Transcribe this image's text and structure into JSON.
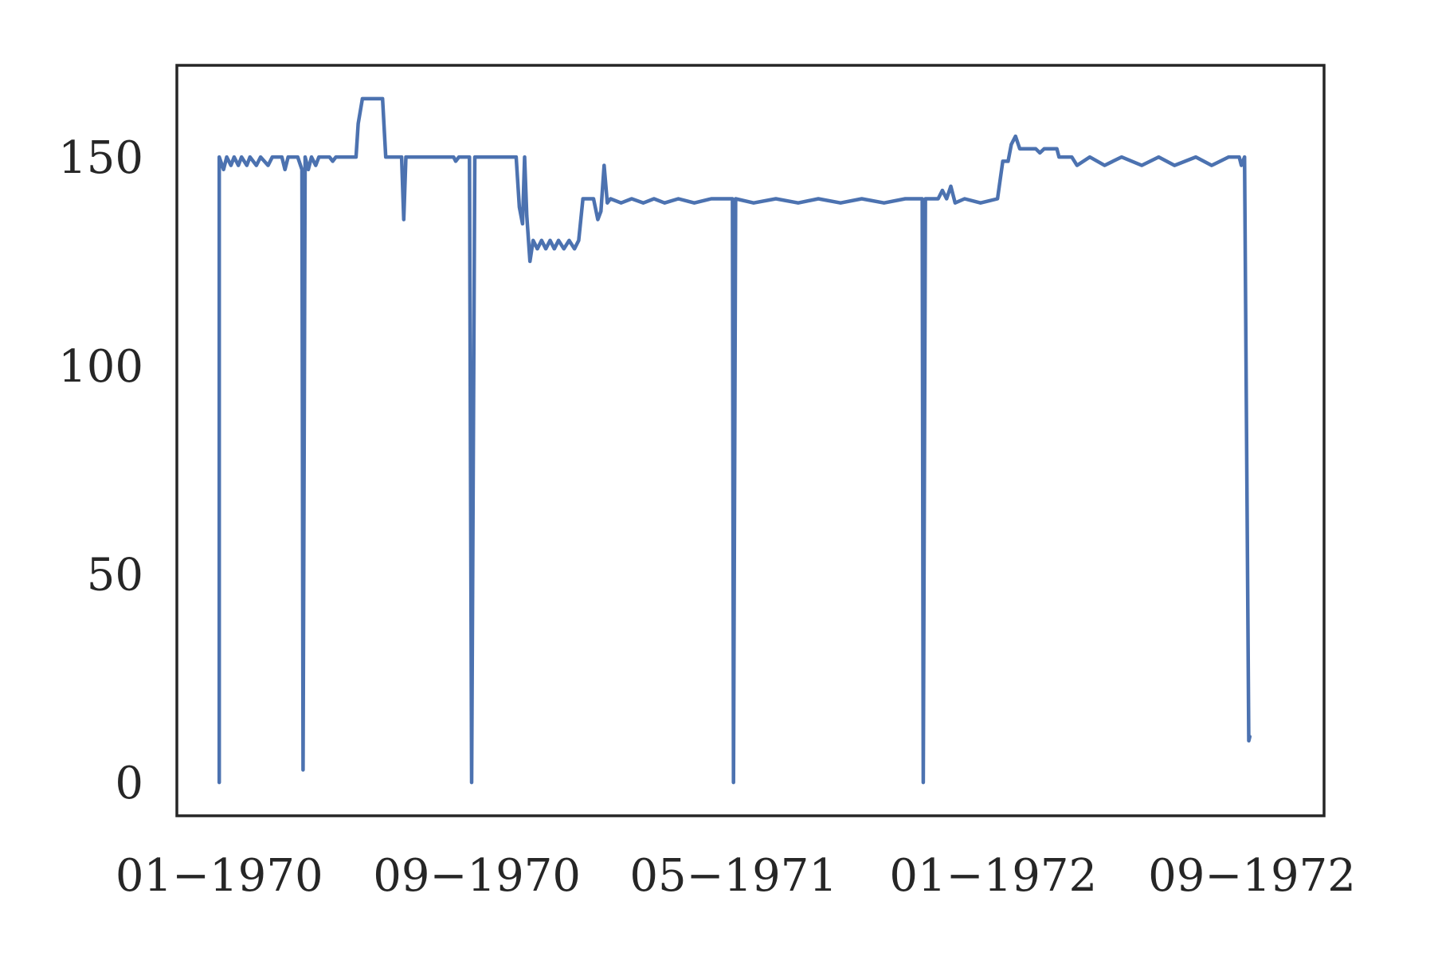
{
  "chart_data": {
    "type": "line",
    "title": "",
    "xlabel": "",
    "ylabel": "",
    "x_axis": {
      "type": "date",
      "range": [
        "1969-11-22",
        "1972-11-08"
      ],
      "ticks": [
        {
          "date": "1970-01-01",
          "label": "01−1970"
        },
        {
          "date": "1970-09-01",
          "label": "09−1970"
        },
        {
          "date": "1971-05-01",
          "label": "05−1971"
        },
        {
          "date": "1972-01-01",
          "label": "01−1972"
        },
        {
          "date": "1972-09-01",
          "label": "09−1972"
        }
      ]
    },
    "y_axis": {
      "range": [
        -8,
        172
      ],
      "ticks": [
        {
          "value": 0,
          "label": "0"
        },
        {
          "value": 50,
          "label": "50"
        },
        {
          "value": 100,
          "label": "100"
        },
        {
          "value": 150,
          "label": "150"
        }
      ]
    },
    "grid": false,
    "legend": "none",
    "series": [
      {
        "color": "#4c72b0",
        "points": [
          [
            "1970-01-01",
            0
          ],
          [
            "1970-01-01",
            150
          ],
          [
            "1970-01-05",
            147
          ],
          [
            "1970-01-08",
            150
          ],
          [
            "1970-01-12",
            148
          ],
          [
            "1970-01-15",
            150
          ],
          [
            "1970-01-19",
            148
          ],
          [
            "1970-01-22",
            150
          ],
          [
            "1970-01-27",
            148
          ],
          [
            "1970-01-30",
            150
          ],
          [
            "1970-02-05",
            148
          ],
          [
            "1970-02-09",
            150
          ],
          [
            "1970-02-16",
            148
          ],
          [
            "1970-02-20",
            150
          ],
          [
            "1970-03-01",
            150
          ],
          [
            "1970-03-04",
            147
          ],
          [
            "1970-03-07",
            150
          ],
          [
            "1970-03-16",
            150
          ],
          [
            "1970-03-20",
            147
          ],
          [
            "1970-03-21",
            3
          ],
          [
            "1970-03-23",
            150
          ],
          [
            "1970-03-26",
            147
          ],
          [
            "1970-03-29",
            150
          ],
          [
            "1970-04-02",
            148
          ],
          [
            "1970-04-05",
            150
          ],
          [
            "1970-04-15",
            150
          ],
          [
            "1970-04-18",
            149
          ],
          [
            "1970-04-21",
            150
          ],
          [
            "1970-05-10",
            150
          ],
          [
            "1970-05-12",
            158
          ],
          [
            "1970-05-16",
            164
          ],
          [
            "1970-06-04",
            164
          ],
          [
            "1970-06-07",
            150
          ],
          [
            "1970-06-22",
            150
          ],
          [
            "1970-06-24",
            135
          ],
          [
            "1970-06-26",
            150
          ],
          [
            "1970-08-10",
            150
          ],
          [
            "1970-08-12",
            149
          ],
          [
            "1970-08-15",
            150
          ],
          [
            "1970-08-25",
            150
          ],
          [
            "1970-08-27",
            0
          ],
          [
            "1970-08-30",
            150
          ],
          [
            "1970-10-08",
            150
          ],
          [
            "1970-10-11",
            138
          ],
          [
            "1970-10-14",
            134
          ],
          [
            "1970-10-16",
            150
          ],
          [
            "1970-10-18",
            136
          ],
          [
            "1970-10-21",
            125
          ],
          [
            "1970-10-24",
            130
          ],
          [
            "1970-10-28",
            128
          ],
          [
            "1970-11-01",
            130
          ],
          [
            "1970-11-05",
            128
          ],
          [
            "1970-11-09",
            130
          ],
          [
            "1970-11-13",
            128
          ],
          [
            "1970-11-17",
            130
          ],
          [
            "1970-11-22",
            128
          ],
          [
            "1970-11-27",
            130
          ],
          [
            "1970-12-02",
            128
          ],
          [
            "1970-12-06",
            130
          ],
          [
            "1970-12-10",
            140
          ],
          [
            "1970-12-20",
            140
          ],
          [
            "1970-12-24",
            135
          ],
          [
            "1970-12-27",
            137
          ],
          [
            "1970-12-30",
            148
          ],
          [
            "1971-01-02",
            139
          ],
          [
            "1971-01-05",
            140
          ],
          [
            "1971-01-15",
            139
          ],
          [
            "1971-01-25",
            140
          ],
          [
            "1971-02-05",
            139
          ],
          [
            "1971-02-15",
            140
          ],
          [
            "1971-02-25",
            139
          ],
          [
            "1971-03-10",
            140
          ],
          [
            "1971-03-25",
            139
          ],
          [
            "1971-04-10",
            140
          ],
          [
            "1971-04-30",
            140
          ],
          [
            "1971-05-01",
            0
          ],
          [
            "1971-05-03",
            140
          ],
          [
            "1971-05-20",
            139
          ],
          [
            "1971-06-10",
            140
          ],
          [
            "1971-07-01",
            139
          ],
          [
            "1971-07-20",
            140
          ],
          [
            "1971-08-10",
            139
          ],
          [
            "1971-08-30",
            140
          ],
          [
            "1971-09-20",
            139
          ],
          [
            "1971-10-10",
            140
          ],
          [
            "1971-10-26",
            140
          ],
          [
            "1971-10-27",
            0
          ],
          [
            "1971-10-29",
            140
          ],
          [
            "1971-11-10",
            140
          ],
          [
            "1971-11-14",
            142
          ],
          [
            "1971-11-18",
            140
          ],
          [
            "1971-11-22",
            143
          ],
          [
            "1971-11-26",
            139
          ],
          [
            "1971-12-05",
            140
          ],
          [
            "1971-12-20",
            139
          ],
          [
            "1972-01-05",
            140
          ],
          [
            "1972-01-10",
            149
          ],
          [
            "1972-01-15",
            149
          ],
          [
            "1972-01-18",
            153
          ],
          [
            "1972-01-22",
            155
          ],
          [
            "1972-01-26",
            152
          ],
          [
            "1972-02-10",
            152
          ],
          [
            "1972-02-14",
            151
          ],
          [
            "1972-02-18",
            152
          ],
          [
            "1972-03-01",
            152
          ],
          [
            "1972-03-03",
            150
          ],
          [
            "1972-03-15",
            150
          ],
          [
            "1972-03-20",
            148
          ],
          [
            "1972-04-01",
            150
          ],
          [
            "1972-04-15",
            148
          ],
          [
            "1972-05-01",
            150
          ],
          [
            "1972-05-20",
            148
          ],
          [
            "1972-06-05",
            150
          ],
          [
            "1972-06-20",
            148
          ],
          [
            "1972-07-10",
            150
          ],
          [
            "1972-07-25",
            148
          ],
          [
            "1972-08-10",
            150
          ],
          [
            "1972-08-20",
            150
          ],
          [
            "1972-08-22",
            148
          ],
          [
            "1972-08-25",
            150
          ],
          [
            "1972-08-29",
            10
          ],
          [
            "1972-08-30",
            11
          ]
        ]
      }
    ]
  }
}
